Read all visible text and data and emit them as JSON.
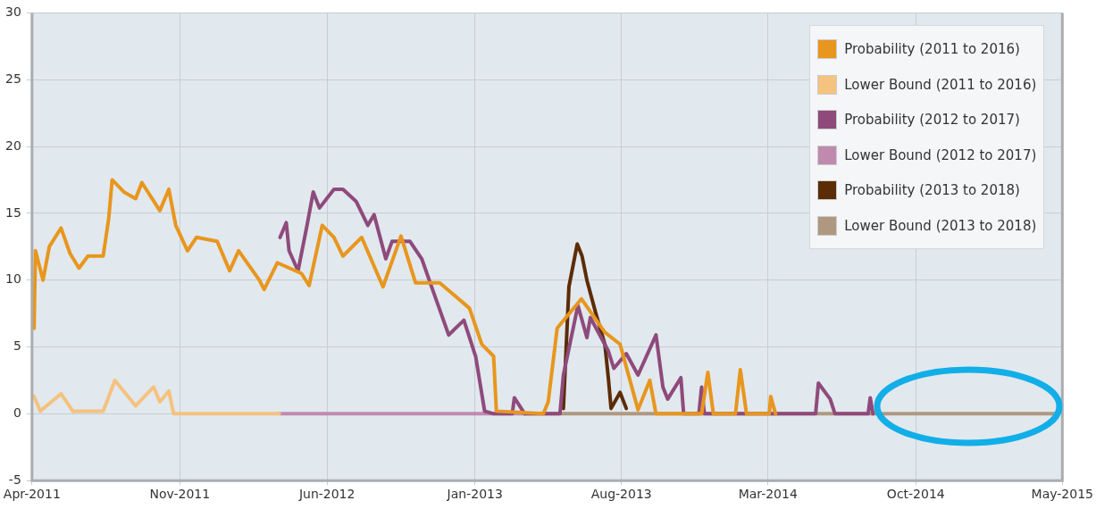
{
  "chart_data": {
    "type": "line",
    "xlim": [
      "2011-04-01",
      "2015-05-01"
    ],
    "ylim": [
      -5,
      30
    ],
    "xticks": [
      {
        "value": "2011-04-01",
        "label": "Apr-2011"
      },
      {
        "value": "2011-11-01",
        "label": "Nov-2011"
      },
      {
        "value": "2012-06-01",
        "label": "Jun-2012"
      },
      {
        "value": "2013-01-01",
        "label": "Jan-2013"
      },
      {
        "value": "2013-08-01",
        "label": "Aug-2013"
      },
      {
        "value": "2014-03-01",
        "label": "Mar-2014"
      },
      {
        "value": "2014-10-01",
        "label": "Oct-2014"
      },
      {
        "value": "2015-05-01",
        "label": "May-2015"
      }
    ],
    "yticks": [
      -5,
      0,
      5,
      10,
      15,
      20,
      25,
      30
    ],
    "grid": true,
    "legend": "top right",
    "marker": "none",
    "line_style": "solid",
    "series": [
      {
        "name": "Probability (2011 to 2016)",
        "color": "#e8961e",
        "x": [
          "2011-04-04",
          "2011-04-06",
          "2011-04-17",
          "2011-04-26",
          "2011-05-13",
          "2011-05-26",
          "2011-06-08",
          "2011-06-21",
          "2011-07-13",
          "2011-07-21",
          "2011-07-26",
          "2011-08-12",
          "2011-08-29",
          "2011-09-07",
          "2011-10-03",
          "2011-10-16",
          "2011-10-26",
          "2011-11-12",
          "2011-11-25",
          "2011-12-25",
          "2012-01-12",
          "2012-01-25",
          "2012-02-24",
          "2012-03-02",
          "2012-03-21",
          "2012-04-25",
          "2012-05-06",
          "2012-05-25",
          "2012-06-11",
          "2012-06-24",
          "2012-07-21",
          "2012-08-21",
          "2012-09-16",
          "2012-10-07",
          "2012-11-11",
          "2012-12-24",
          "2013-01-11",
          "2013-01-28",
          "2013-02-01",
          "2013-04-10",
          "2013-04-17",
          "2013-04-30",
          "2013-06-04",
          "2013-07-08",
          "2013-07-30",
          "2013-08-25",
          "2013-09-11",
          "2013-09-20",
          "2013-11-25",
          "2013-12-04",
          "2013-12-12",
          "2014-01-13",
          "2014-01-20",
          "2014-01-29",
          "2014-03-03",
          "2014-03-05",
          "2014-03-12"
        ],
        "values": [
          6.4,
          12.2,
          10.0,
          12.5,
          13.9,
          12.0,
          10.9,
          11.8,
          11.8,
          14.6,
          17.5,
          16.6,
          16.1,
          17.3,
          15.2,
          16.8,
          14.1,
          12.2,
          13.2,
          12.9,
          10.7,
          12.2,
          10.0,
          9.3,
          11.3,
          10.5,
          9.6,
          14.1,
          13.2,
          11.8,
          13.2,
          9.5,
          13.3,
          9.8,
          9.8,
          7.9,
          5.2,
          4.3,
          0.2,
          0,
          0.9,
          6.4,
          8.6,
          6.1,
          5.2,
          0.3,
          2.5,
          0,
          0,
          3.1,
          0,
          0,
          3.3,
          0,
          0,
          1.3,
          0
        ]
      },
      {
        "name": "Lower Bound (2011 to 2016)",
        "color": "#f5c27f",
        "x": [
          "2011-04-04",
          "2011-04-13",
          "2011-05-13",
          "2011-05-30",
          "2011-07-13",
          "2011-07-30",
          "2011-08-29",
          "2011-09-24",
          "2011-10-03",
          "2011-10-16",
          "2011-10-23",
          "2012-03-24"
        ],
        "values": [
          1.3,
          0.2,
          1.5,
          0.2,
          0.2,
          2.5,
          0.6,
          2.0,
          0.9,
          1.7,
          0,
          0
        ]
      },
      {
        "name": "Probability (2012 to 2017)",
        "color": "#8f4a7c",
        "x": [
          "2012-03-25",
          "2012-04-03",
          "2012-04-07",
          "2012-04-20",
          "2012-05-03",
          "2012-05-12",
          "2012-05-21",
          "2012-06-11",
          "2012-06-24",
          "2012-07-13",
          "2012-07-30",
          "2012-08-08",
          "2012-08-25",
          "2012-09-03",
          "2012-09-29",
          "2012-10-16",
          "2012-11-02",
          "2012-11-24",
          "2012-12-16",
          "2013-01-02",
          "2013-01-15",
          "2013-01-28",
          "2013-02-24",
          "2013-02-27",
          "2013-03-09",
          "2013-03-14",
          "2013-05-04",
          "2013-05-09",
          "2013-05-30",
          "2013-06-12",
          "2013-06-17",
          "2013-07-13",
          "2013-07-21",
          "2013-08-08",
          "2013-08-25",
          "2013-09-20",
          "2013-09-30",
          "2013-10-07",
          "2013-10-26",
          "2013-10-30",
          "2013-11-21",
          "2013-11-25",
          "2013-11-29",
          "2014-05-09",
          "2014-05-13",
          "2014-05-30",
          "2014-06-06",
          "2014-07-24",
          "2014-07-27",
          "2014-07-31"
        ],
        "values": [
          13.2,
          14.3,
          12.2,
          10.7,
          14.1,
          16.6,
          15.4,
          16.8,
          16.8,
          15.9,
          14.1,
          14.9,
          11.6,
          12.9,
          12.9,
          11.6,
          9.1,
          5.9,
          7.0,
          4.3,
          0.2,
          0,
          0,
          1.2,
          0.4,
          0,
          0,
          2.9,
          8.1,
          5.7,
          7.2,
          4.7,
          3.4,
          4.5,
          2.9,
          5.9,
          2.0,
          1.1,
          2.7,
          0,
          0,
          2.0,
          0,
          0,
          2.3,
          1.1,
          0,
          0,
          1.2,
          0
        ]
      },
      {
        "name": "Lower Bound (2012 to 2017)",
        "color": "#c08aaf",
        "x": [
          "2012-03-24",
          "2013-03-16"
        ],
        "values": [
          0,
          0
        ]
      },
      {
        "name": "Probability (2013 to 2018)",
        "color": "#5c2c06",
        "x": [
          "2013-05-09",
          "2013-05-17",
          "2013-05-29",
          "2013-06-05",
          "2013-06-12",
          "2013-06-25",
          "2013-07-08",
          "2013-07-13",
          "2013-07-17",
          "2013-07-30",
          "2013-08-08"
        ],
        "values": [
          0.4,
          9.5,
          12.7,
          11.8,
          10.0,
          7.5,
          5.2,
          2.7,
          0.4,
          1.6,
          0.4
        ]
      },
      {
        "name": "Lower Bound (2013 to 2018)",
        "color": "#b09880",
        "x": [
          "2013-03-16",
          "2015-04-23"
        ],
        "values": [
          0,
          0
        ]
      }
    ]
  }
}
